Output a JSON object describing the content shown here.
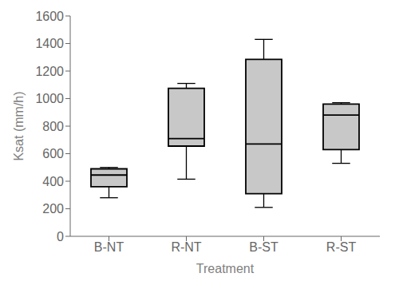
{
  "chart_data": {
    "type": "box",
    "categories": [
      "B-NT",
      "R-NT",
      "B-ST",
      "R-ST"
    ],
    "boxes": [
      {
        "whislo": 280,
        "q1": 360,
        "med": 445,
        "q3": 490,
        "whishi": 500
      },
      {
        "whislo": 415,
        "q1": 655,
        "med": 710,
        "q3": 1075,
        "whishi": 1110
      },
      {
        "whislo": 210,
        "q1": 310,
        "med": 670,
        "q3": 1285,
        "whishi": 1430
      },
      {
        "whislo": 530,
        "q1": 630,
        "med": 880,
        "q3": 960,
        "whishi": 970
      }
    ],
    "xlabel": "Treatment",
    "ylabel": "Ksat (mm/h)",
    "ylim": [
      0,
      1600
    ],
    "yticks": [
      0,
      200,
      400,
      600,
      800,
      1000,
      1200,
      1400,
      1600
    ],
    "color": "#c8c8c8",
    "grid": false
  }
}
